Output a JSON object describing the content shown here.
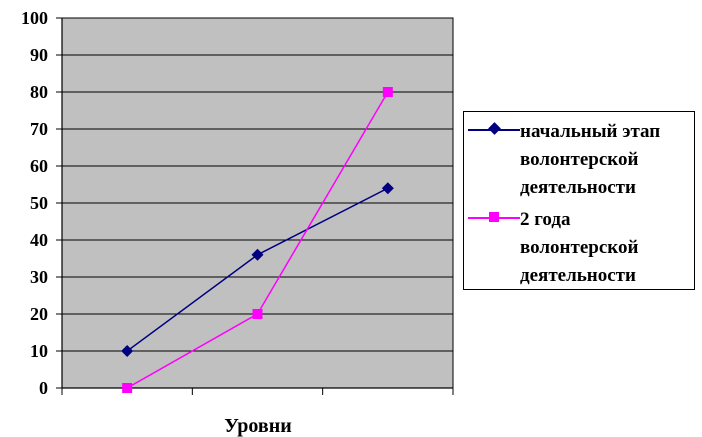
{
  "chart_data": {
    "type": "line",
    "xlabel": "Уровни",
    "ylabel": "",
    "ylim": [
      0,
      100
    ],
    "yticks": [
      "0",
      "10",
      "20",
      "30",
      "40",
      "50",
      "60",
      "70",
      "80",
      "90",
      "100"
    ],
    "categories": [
      "",
      "",
      ""
    ],
    "grid": true,
    "plot_background": "#c0c0c0",
    "legend_position": "right",
    "series": [
      {
        "name": "начальный этап волонтерской деятельности",
        "values": [
          10,
          36,
          54
        ],
        "color": "#000080",
        "marker": "diamond"
      },
      {
        "name": "2 года волонтерской деятельности",
        "values": [
          0,
          20,
          80
        ],
        "color": "#ff00ff",
        "marker": "square"
      }
    ]
  },
  "legend": {
    "item1": "начальный этап\nволонтерской\nдеятельности",
    "item2": "2 года\nволонтерской\nдеятельности"
  }
}
